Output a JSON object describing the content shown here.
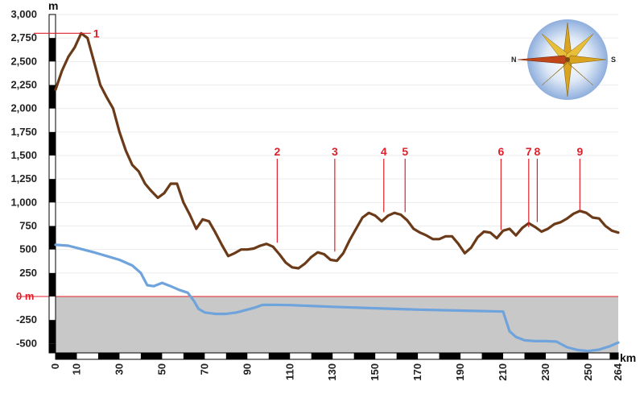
{
  "chart_data": {
    "type": "line",
    "title": "",
    "xlabel": "km",
    "ylabel": "m",
    "xlim": [
      0,
      264
    ],
    "ylim": [
      -600,
      3000
    ],
    "x_ticks": [
      "0",
      "10",
      "30",
      "50",
      "70",
      "90",
      "110",
      "130",
      "150",
      "170",
      "190",
      "210",
      "230",
      "250",
      "264"
    ],
    "y_ticks": [
      "3,000",
      "2,750",
      "2,500",
      "2,250",
      "2,000",
      "1,750",
      "1,500",
      "1,250",
      "1,000",
      "750",
      "500",
      "250",
      "0 m",
      "-250",
      "-500"
    ],
    "zero_label": "0 m",
    "compass": {
      "left": "N",
      "right": "S"
    },
    "colors": {
      "profile": "#6b3a18",
      "water": "#6fa3dc",
      "sea": "#c8c8c8",
      "markers": "#e0202a"
    },
    "series": [
      {
        "x": [
          0,
          3,
          6,
          9,
          12,
          15,
          18,
          21,
          24,
          27,
          30,
          33,
          36,
          39,
          42,
          45,
          48,
          51,
          54,
          57,
          60,
          63,
          66,
          69,
          72,
          75,
          78,
          81,
          84,
          87,
          90,
          93,
          96,
          99,
          102,
          105,
          108,
          111,
          114,
          117,
          120,
          123,
          126,
          129,
          132,
          135,
          138,
          141,
          144,
          147,
          150,
          153,
          156,
          159,
          162,
          165,
          168,
          171,
          174,
          177,
          180,
          183,
          186,
          189,
          192,
          195,
          198,
          201,
          204,
          207,
          210,
          213,
          216,
          219,
          222,
          225,
          228,
          231,
          234,
          237,
          240,
          243,
          246,
          249,
          252,
          255,
          258,
          261,
          264
        ],
        "values": [
          2200,
          2400,
          2550,
          2650,
          2800,
          2750,
          2500,
          2250,
          2120,
          2000,
          1750,
          1550,
          1400,
          1330,
          1200,
          1120,
          1050,
          1100,
          1200,
          1200,
          1000,
          870,
          720,
          820,
          800,
          680,
          550,
          430,
          460,
          500,
          500,
          510,
          540,
          560,
          530,
          450,
          360,
          310,
          300,
          350,
          420,
          470,
          450,
          390,
          380,
          460,
          600,
          720,
          840,
          890,
          860,
          800,
          860,
          890,
          870,
          810,
          720,
          680,
          650,
          610,
          610,
          640,
          640,
          560,
          460,
          520,
          630,
          690,
          680,
          620,
          700,
          720,
          650,
          730,
          780,
          740,
          690,
          720,
          770,
          790,
          830,
          880,
          910,
          890,
          840,
          830,
          750,
          700,
          680
        ]
      },
      {
        "x": [
          0,
          6,
          12,
          18,
          24,
          30,
          36,
          40,
          43,
          46,
          50,
          54,
          58,
          62,
          65,
          67,
          70,
          75,
          80,
          85,
          90,
          94,
          97,
          100,
          110,
          130,
          150,
          170,
          190,
          210,
          213,
          216,
          220,
          225,
          230,
          235,
          240,
          245,
          250,
          255,
          260,
          264
        ],
        "values": [
          550,
          540,
          505,
          470,
          430,
          390,
          330,
          250,
          120,
          110,
          145,
          110,
          70,
          40,
          -50,
          -130,
          -170,
          -185,
          -185,
          -170,
          -140,
          -115,
          -90,
          -88,
          -92,
          -110,
          -125,
          -140,
          -150,
          -160,
          -370,
          -430,
          -465,
          -475,
          -475,
          -480,
          -540,
          -570,
          -580,
          -565,
          -530,
          -490
        ]
      }
    ],
    "markers": [
      {
        "label": "1",
        "x": 12,
        "y": 2800
      },
      {
        "label": "2",
        "x": 104,
        "y": 555
      },
      {
        "label": "3",
        "x": 131,
        "y": 460
      },
      {
        "label": "4",
        "x": 154,
        "y": 880
      },
      {
        "label": "5",
        "x": 164,
        "y": 880
      },
      {
        "label": "6",
        "x": 209,
        "y": 690
      },
      {
        "label": "7",
        "x": 222,
        "y": 720
      },
      {
        "label": "8",
        "x": 226,
        "y": 775
      },
      {
        "label": "9",
        "x": 246,
        "y": 900
      }
    ]
  }
}
